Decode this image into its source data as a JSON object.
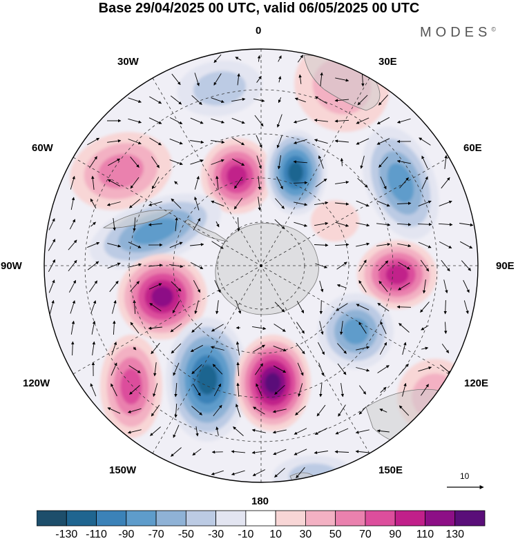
{
  "title": "Base 29/04/2025 00 UTC, valid 06/05/2025 00 UTC",
  "brand": "MODES",
  "brand_mark": "©",
  "longitude_labels": {
    "lon_0": "0",
    "lon_30e": "30E",
    "lon_60e": "60E",
    "lon_90e": "90E",
    "lon_120e": "120E",
    "lon_150e": "150E",
    "lon_180": "180",
    "lon_150w": "150W",
    "lon_120w": "120W",
    "lon_90w": "90W",
    "lon_60w": "60W",
    "lon_30w": "30W"
  },
  "colorbar": {
    "ticks": [
      "-130",
      "-110",
      "-90",
      "-70",
      "-50",
      "-30",
      "-10",
      "10",
      "30",
      "50",
      "70",
      "90",
      "110",
      "130"
    ],
    "colors": [
      "#1d4e6b",
      "#1f6590",
      "#3b82b8",
      "#5e9ccb",
      "#8fb2d6",
      "#bccbe4",
      "#e3e5f1",
      "#ffffff",
      "#f8d6d6",
      "#f3b1c3",
      "#ea81ae",
      "#dc4e9c",
      "#c1208a",
      "#8d0f86",
      "#5a0e79"
    ]
  },
  "vector_reference": {
    "value": "10"
  },
  "anomaly_centers": [
    {
      "sign": "neg",
      "level": 2
    },
    {
      "sign": "pos",
      "level": 3
    },
    {
      "sign": "pos",
      "level": 5
    },
    {
      "sign": "neg",
      "level": 6
    },
    {
      "sign": "pos",
      "level": 2
    },
    {
      "sign": "neg",
      "level": 4
    },
    {
      "sign": "pos",
      "level": 5
    },
    {
      "sign": "neg",
      "level": 4
    },
    {
      "sign": "pos",
      "level": 6
    },
    {
      "sign": "neg",
      "level": 6
    },
    {
      "sign": "pos",
      "level": 7
    },
    {
      "sign": "pos",
      "level": 4
    },
    {
      "sign": "neg",
      "level": 4
    },
    {
      "sign": "pos",
      "level": 2
    },
    {
      "sign": "neg",
      "level": 2
    },
    {
      "sign": "pos",
      "level": 1
    }
  ]
}
